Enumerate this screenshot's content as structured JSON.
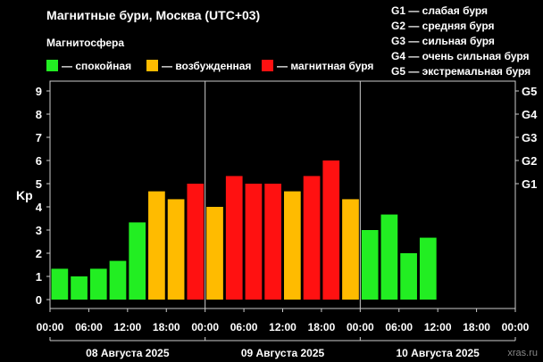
{
  "header": {
    "title": "Магнитные бури, Москва (UTC+03)",
    "subtitle": "Магнитосфера"
  },
  "legend": [
    {
      "label": "— спокойная",
      "color": "#22ee22"
    },
    {
      "label": "— возбужденная",
      "color": "#ffbb00"
    },
    {
      "label": "— магнитная буря",
      "color": "#ff1111"
    }
  ],
  "storm_scale": [
    {
      "code": "G1",
      "label": "G1 — слабая буря"
    },
    {
      "code": "G2",
      "label": "G2 — средняя буря"
    },
    {
      "code": "G3",
      "label": "G3 — сильная буря"
    },
    {
      "code": "G4",
      "label": "G4 — очень сильная буря"
    },
    {
      "code": "G5",
      "label": "G5 — экстремальная буря"
    }
  ],
  "footer": {
    "source": "xras.ru"
  },
  "chart_data": {
    "type": "bar",
    "ylabel": "Kp",
    "ylim": [
      0,
      9
    ],
    "yticks": [
      "0",
      "1",
      "2",
      "3",
      "4",
      "5",
      "6",
      "7",
      "8",
      "9"
    ],
    "right_axis_ticks": [
      {
        "label": "G1",
        "kp": 5
      },
      {
        "label": "G2",
        "kp": 6
      },
      {
        "label": "G3",
        "kp": 7
      },
      {
        "label": "G4",
        "kp": 8
      },
      {
        "label": "G5",
        "kp": 9
      }
    ],
    "xtick_labels": [
      "00:00",
      "06:00",
      "12:00",
      "18:00",
      "00:00",
      "06:00",
      "12:00",
      "18:00",
      "00:00",
      "06:00",
      "12:00",
      "18:00",
      "00:00"
    ],
    "days": [
      "08 Августа 2025",
      "09 Августа 2025",
      "10 Августа 2025"
    ],
    "grid": false,
    "intervals_per_day": 8,
    "values": [
      1.33,
      1.0,
      1.33,
      1.67,
      3.33,
      4.67,
      4.33,
      5.0,
      4.0,
      5.33,
      5.0,
      5.0,
      4.67,
      5.33,
      6.0,
      4.33,
      3.0,
      3.67,
      2.0,
      2.67
    ],
    "colors": [
      "#22ee22",
      "#22ee22",
      "#22ee22",
      "#22ee22",
      "#22ee22",
      "#ffbb00",
      "#ffbb00",
      "#ff1111",
      "#ffbb00",
      "#ff1111",
      "#ff1111",
      "#ff1111",
      "#ffbb00",
      "#ff1111",
      "#ff1111",
      "#ffbb00",
      "#22ee22",
      "#22ee22",
      "#22ee22",
      "#22ee22"
    ]
  }
}
